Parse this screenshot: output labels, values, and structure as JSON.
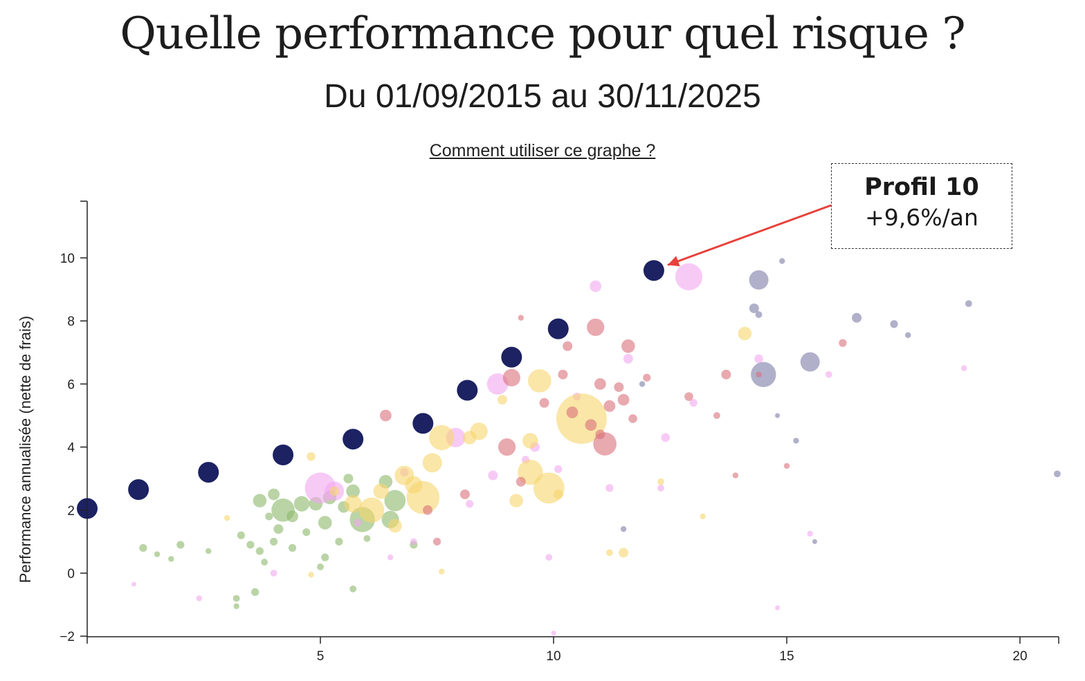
{
  "header": {
    "title": "Quelle performance pour quel risque ?",
    "subtitle": "Du 01/09/2015 au 30/11/2025",
    "help_link": "Comment utiliser ce graphe ?"
  },
  "callout": {
    "title": "Profil 10",
    "value": "+9,6%/an",
    "arrow_color": "#e8403a"
  },
  "colors": {
    "profiles": "#1c2262",
    "green": "#8cb86a",
    "pink": "#f2a6f0",
    "yellow": "#f7d66d",
    "red": "#d9707a",
    "grey": "#8e8fb4"
  },
  "chart_data": {
    "type": "scatter",
    "title": "",
    "xlabel": "",
    "ylabel": "Performance annualisée (nette de frais)",
    "xlim": [
      0,
      20.8
    ],
    "ylim": [
      -2,
      11.8
    ],
    "xticks": [
      5,
      10,
      15,
      20
    ],
    "yticks": [
      -2,
      0,
      2,
      4,
      6,
      8,
      10
    ],
    "grid": false,
    "legend": "none",
    "annotation": {
      "text": "Profil 10 +9,6%/an",
      "x": 12.15,
      "y": 9.6
    },
    "series": [
      {
        "color_key": "profiles",
        "points": [
          {
            "x": 0.0,
            "y": 2.05,
            "s": 1
          },
          {
            "x": 1.1,
            "y": 2.65,
            "s": 1
          },
          {
            "x": 2.6,
            "y": 3.2,
            "s": 1
          },
          {
            "x": 4.2,
            "y": 3.75,
            "s": 1
          },
          {
            "x": 5.7,
            "y": 4.25,
            "s": 1
          },
          {
            "x": 7.2,
            "y": 4.75,
            "s": 1
          },
          {
            "x": 8.15,
            "y": 5.8,
            "s": 1
          },
          {
            "x": 9.1,
            "y": 6.85,
            "s": 1
          },
          {
            "x": 10.1,
            "y": 7.75,
            "s": 1
          },
          {
            "x": 12.15,
            "y": 9.6,
            "s": 1
          }
        ]
      },
      {
        "color_key": "grey",
        "points": [
          {
            "x": 14.4,
            "y": 9.3,
            "s": 1.0
          },
          {
            "x": 14.5,
            "y": 6.3,
            "s": 1.3
          },
          {
            "x": 15.5,
            "y": 6.7,
            "s": 1.0
          },
          {
            "x": 14.3,
            "y": 8.4,
            "s": 0.5
          },
          {
            "x": 14.4,
            "y": 8.2,
            "s": 0.35
          },
          {
            "x": 16.5,
            "y": 8.1,
            "s": 0.5
          },
          {
            "x": 17.3,
            "y": 7.9,
            "s": 0.4
          },
          {
            "x": 17.6,
            "y": 7.55,
            "s": 0.3
          },
          {
            "x": 18.9,
            "y": 8.55,
            "s": 0.35
          },
          {
            "x": 14.9,
            "y": 9.9,
            "s": 0.3
          },
          {
            "x": 20.8,
            "y": 3.15,
            "s": 0.35
          },
          {
            "x": 15.2,
            "y": 4.2,
            "s": 0.3
          },
          {
            "x": 14.8,
            "y": 5.0,
            "s": 0.25
          },
          {
            "x": 15.6,
            "y": 1.0,
            "s": 0.25
          },
          {
            "x": 11.9,
            "y": 6.0,
            "s": 0.3
          },
          {
            "x": 11.5,
            "y": 1.4,
            "s": 0.3
          }
        ]
      },
      {
        "color_key": "pink",
        "points": [
          {
            "x": 5.0,
            "y": 2.7,
            "s": 1.6
          },
          {
            "x": 5.3,
            "y": 2.6,
            "s": 1.0
          },
          {
            "x": 12.9,
            "y": 9.4,
            "s": 1.4
          },
          {
            "x": 8.8,
            "y": 6.0,
            "s": 1.1
          },
          {
            "x": 7.9,
            "y": 4.3,
            "s": 1.0
          },
          {
            "x": 10.9,
            "y": 9.1,
            "s": 0.6
          },
          {
            "x": 11.6,
            "y": 6.8,
            "s": 0.5
          },
          {
            "x": 13.0,
            "y": 5.4,
            "s": 0.4
          },
          {
            "x": 14.4,
            "y": 6.8,
            "s": 0.45
          },
          {
            "x": 15.9,
            "y": 6.3,
            "s": 0.35
          },
          {
            "x": 18.8,
            "y": 6.5,
            "s": 0.3
          },
          {
            "x": 15.5,
            "y": 1.25,
            "s": 0.3
          },
          {
            "x": 12.4,
            "y": 4.3,
            "s": 0.45
          },
          {
            "x": 9.6,
            "y": 4.0,
            "s": 0.5
          },
          {
            "x": 8.7,
            "y": 3.1,
            "s": 0.5
          },
          {
            "x": 9.9,
            "y": 0.5,
            "s": 0.35
          },
          {
            "x": 7.0,
            "y": 1.0,
            "s": 0.35
          },
          {
            "x": 6.5,
            "y": 0.5,
            "s": 0.3
          },
          {
            "x": 4.0,
            "y": 0.0,
            "s": 0.35
          },
          {
            "x": 2.4,
            "y": -0.8,
            "s": 0.3
          },
          {
            "x": 1.0,
            "y": -0.35,
            "s": 0.25
          },
          {
            "x": 10.1,
            "y": 3.3,
            "s": 0.4
          },
          {
            "x": 11.2,
            "y": 2.7,
            "s": 0.4
          },
          {
            "x": 6.8,
            "y": 3.2,
            "s": 0.45
          },
          {
            "x": 8.2,
            "y": 2.2,
            "s": 0.4
          },
          {
            "x": 10.5,
            "y": 5.6,
            "s": 0.4
          },
          {
            "x": 14.8,
            "y": -1.1,
            "s": 0.25
          },
          {
            "x": 10.0,
            "y": -1.9,
            "s": 0.25
          },
          {
            "x": 12.3,
            "y": 2.7,
            "s": 0.35
          },
          {
            "x": 9.4,
            "y": 3.6,
            "s": 0.4
          },
          {
            "x": 5.8,
            "y": 1.6,
            "s": 0.4
          }
        ]
      },
      {
        "color_key": "yellow",
        "points": [
          {
            "x": 10.6,
            "y": 4.9,
            "s": 2.6
          },
          {
            "x": 9.5,
            "y": 3.2,
            "s": 1.3
          },
          {
            "x": 9.9,
            "y": 2.7,
            "s": 1.6
          },
          {
            "x": 9.7,
            "y": 6.1,
            "s": 1.2
          },
          {
            "x": 7.2,
            "y": 2.4,
            "s": 1.7
          },
          {
            "x": 7.6,
            "y": 4.3,
            "s": 1.3
          },
          {
            "x": 6.1,
            "y": 2.0,
            "s": 1.3
          },
          {
            "x": 6.8,
            "y": 3.1,
            "s": 1.0
          },
          {
            "x": 7.4,
            "y": 3.5,
            "s": 1.0
          },
          {
            "x": 8.4,
            "y": 4.5,
            "s": 0.9
          },
          {
            "x": 9.2,
            "y": 2.3,
            "s": 0.7
          },
          {
            "x": 9.5,
            "y": 4.2,
            "s": 0.8
          },
          {
            "x": 14.1,
            "y": 7.6,
            "s": 0.7
          },
          {
            "x": 11.5,
            "y": 0.65,
            "s": 0.5
          },
          {
            "x": 11.2,
            "y": 0.65,
            "s": 0.35
          },
          {
            "x": 12.3,
            "y": 2.9,
            "s": 0.35
          },
          {
            "x": 10.1,
            "y": 2.5,
            "s": 0.5
          },
          {
            "x": 5.7,
            "y": 2.2,
            "s": 0.9
          },
          {
            "x": 4.3,
            "y": 3.7,
            "s": 0.4
          },
          {
            "x": 4.8,
            "y": 3.7,
            "s": 0.45
          },
          {
            "x": 6.6,
            "y": 1.5,
            "s": 0.7
          },
          {
            "x": 8.9,
            "y": 5.5,
            "s": 0.5
          },
          {
            "x": 5.3,
            "y": 2.6,
            "s": 0.5
          },
          {
            "x": 6.3,
            "y": 2.6,
            "s": 0.8
          },
          {
            "x": 7.0,
            "y": 2.8,
            "s": 0.9
          },
          {
            "x": 13.2,
            "y": 1.8,
            "s": 0.3
          },
          {
            "x": 8.2,
            "y": 4.3,
            "s": 0.7
          },
          {
            "x": 3.0,
            "y": 1.75,
            "s": 0.3
          },
          {
            "x": 7.6,
            "y": 0.05,
            "s": 0.3
          },
          {
            "x": 4.8,
            "y": -0.05,
            "s": 0.3
          }
        ]
      },
      {
        "color_key": "red",
        "points": [
          {
            "x": 10.9,
            "y": 7.8,
            "s": 0.9
          },
          {
            "x": 11.1,
            "y": 4.1,
            "s": 1.2
          },
          {
            "x": 9.1,
            "y": 6.2,
            "s": 0.9
          },
          {
            "x": 9.0,
            "y": 4.0,
            "s": 0.9
          },
          {
            "x": 11.6,
            "y": 7.2,
            "s": 0.7
          },
          {
            "x": 12.0,
            "y": 6.2,
            "s": 0.4
          },
          {
            "x": 11.2,
            "y": 5.3,
            "s": 0.6
          },
          {
            "x": 11.5,
            "y": 5.5,
            "s": 0.6
          },
          {
            "x": 11.0,
            "y": 6.0,
            "s": 0.6
          },
          {
            "x": 10.4,
            "y": 5.1,
            "s": 0.6
          },
          {
            "x": 10.8,
            "y": 4.7,
            "s": 0.6
          },
          {
            "x": 10.2,
            "y": 6.3,
            "s": 0.5
          },
          {
            "x": 9.8,
            "y": 5.4,
            "s": 0.5
          },
          {
            "x": 6.4,
            "y": 5.0,
            "s": 0.6
          },
          {
            "x": 10.3,
            "y": 7.2,
            "s": 0.5
          },
          {
            "x": 11.4,
            "y": 5.9,
            "s": 0.5
          },
          {
            "x": 12.9,
            "y": 5.6,
            "s": 0.45
          },
          {
            "x": 13.5,
            "y": 5.0,
            "s": 0.35
          },
          {
            "x": 13.7,
            "y": 6.3,
            "s": 0.5
          },
          {
            "x": 16.2,
            "y": 7.3,
            "s": 0.4
          },
          {
            "x": 9.3,
            "y": 8.1,
            "s": 0.3
          },
          {
            "x": 7.3,
            "y": 2.0,
            "s": 0.5
          },
          {
            "x": 7.5,
            "y": 1.0,
            "s": 0.4
          },
          {
            "x": 13.9,
            "y": 3.1,
            "s": 0.3
          },
          {
            "x": 14.4,
            "y": 6.3,
            "s": 0.3
          },
          {
            "x": 15.0,
            "y": 3.4,
            "s": 0.3
          },
          {
            "x": 11.7,
            "y": 4.9,
            "s": 0.45
          },
          {
            "x": 11.0,
            "y": 4.4,
            "s": 0.5
          },
          {
            "x": 8.1,
            "y": 2.5,
            "s": 0.5
          },
          {
            "x": 9.3,
            "y": 2.9,
            "s": 0.5
          }
        ]
      },
      {
        "color_key": "green",
        "points": [
          {
            "x": 5.9,
            "y": 1.7,
            "s": 1.3
          },
          {
            "x": 6.6,
            "y": 2.3,
            "s": 1.1
          },
          {
            "x": 4.2,
            "y": 2.0,
            "s": 1.2
          },
          {
            "x": 4.6,
            "y": 2.2,
            "s": 0.8
          },
          {
            "x": 3.7,
            "y": 2.3,
            "s": 0.7
          },
          {
            "x": 4.0,
            "y": 2.5,
            "s": 0.6
          },
          {
            "x": 5.7,
            "y": 2.6,
            "s": 0.7
          },
          {
            "x": 6.4,
            "y": 2.9,
            "s": 0.7
          },
          {
            "x": 5.1,
            "y": 1.6,
            "s": 0.7
          },
          {
            "x": 4.9,
            "y": 2.2,
            "s": 0.7
          },
          {
            "x": 4.4,
            "y": 1.8,
            "s": 0.6
          },
          {
            "x": 5.5,
            "y": 2.1,
            "s": 0.6
          },
          {
            "x": 3.3,
            "y": 1.2,
            "s": 0.4
          },
          {
            "x": 3.5,
            "y": 0.9,
            "s": 0.4
          },
          {
            "x": 3.7,
            "y": 0.7,
            "s": 0.4
          },
          {
            "x": 4.0,
            "y": 1.0,
            "s": 0.4
          },
          {
            "x": 4.4,
            "y": 0.8,
            "s": 0.4
          },
          {
            "x": 5.1,
            "y": 0.5,
            "s": 0.4
          },
          {
            "x": 5.4,
            "y": 1.0,
            "s": 0.4
          },
          {
            "x": 3.2,
            "y": -0.8,
            "s": 0.35
          },
          {
            "x": 3.6,
            "y": -0.6,
            "s": 0.4
          },
          {
            "x": 5.7,
            "y": -0.5,
            "s": 0.35
          },
          {
            "x": 2.0,
            "y": 0.9,
            "s": 0.4
          },
          {
            "x": 1.2,
            "y": 0.8,
            "s": 0.4
          },
          {
            "x": 1.8,
            "y": 0.45,
            "s": 0.3
          },
          {
            "x": 2.6,
            "y": 0.7,
            "s": 0.3
          },
          {
            "x": 7.0,
            "y": 0.9,
            "s": 0.4
          },
          {
            "x": 5.6,
            "y": 3.0,
            "s": 0.5
          },
          {
            "x": 4.1,
            "y": 1.4,
            "s": 0.5
          },
          {
            "x": 3.9,
            "y": 1.8,
            "s": 0.4
          },
          {
            "x": 4.7,
            "y": 1.3,
            "s": 0.4
          },
          {
            "x": 3.2,
            "y": -1.05,
            "s": 0.3
          },
          {
            "x": 5.0,
            "y": 0.2,
            "s": 0.35
          },
          {
            "x": 3.8,
            "y": 0.35,
            "s": 0.35
          },
          {
            "x": 6.0,
            "y": 1.1,
            "s": 0.35
          },
          {
            "x": 6.5,
            "y": 1.7,
            "s": 0.9
          },
          {
            "x": 5.2,
            "y": 2.4,
            "s": 0.7
          },
          {
            "x": 1.5,
            "y": 0.6,
            "s": 0.3
          }
        ]
      }
    ]
  }
}
